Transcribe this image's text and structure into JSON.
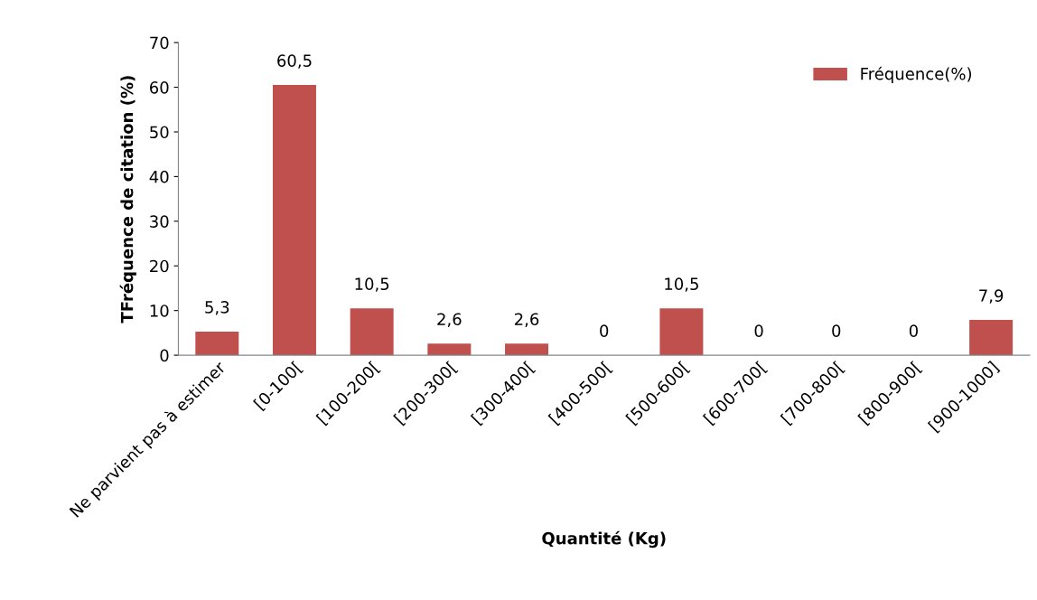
{
  "chart_data": {
    "type": "bar",
    "xlabel": "Quantité (Kg)",
    "ylabel": "TFréquence de citation (%)",
    "categories": [
      "Ne parvient pas à estimer",
      "[0-100[",
      "[100-200[",
      "[200-300[",
      "[300-400[",
      "[400-500[",
      "[500-600[",
      "[600-700[",
      "[700-800[",
      "[800-900[",
      "[900-1000]"
    ],
    "series": [
      {
        "name": "Fréquence(%)",
        "color": "#c0504d",
        "values": [
          5.3,
          60.5,
          10.5,
          2.6,
          2.6,
          0,
          10.5,
          0,
          0,
          0,
          7.9
        ],
        "value_labels": [
          "5,3",
          "60,5",
          "10,5",
          "2,6",
          "2,6",
          "0",
          "10,5",
          "0",
          "0",
          "0",
          "7,9"
        ]
      }
    ],
    "ylim": [
      0,
      70
    ],
    "yticks": [
      0,
      10,
      20,
      30,
      40,
      50,
      60,
      70
    ],
    "grid": false,
    "legend": "top right"
  }
}
